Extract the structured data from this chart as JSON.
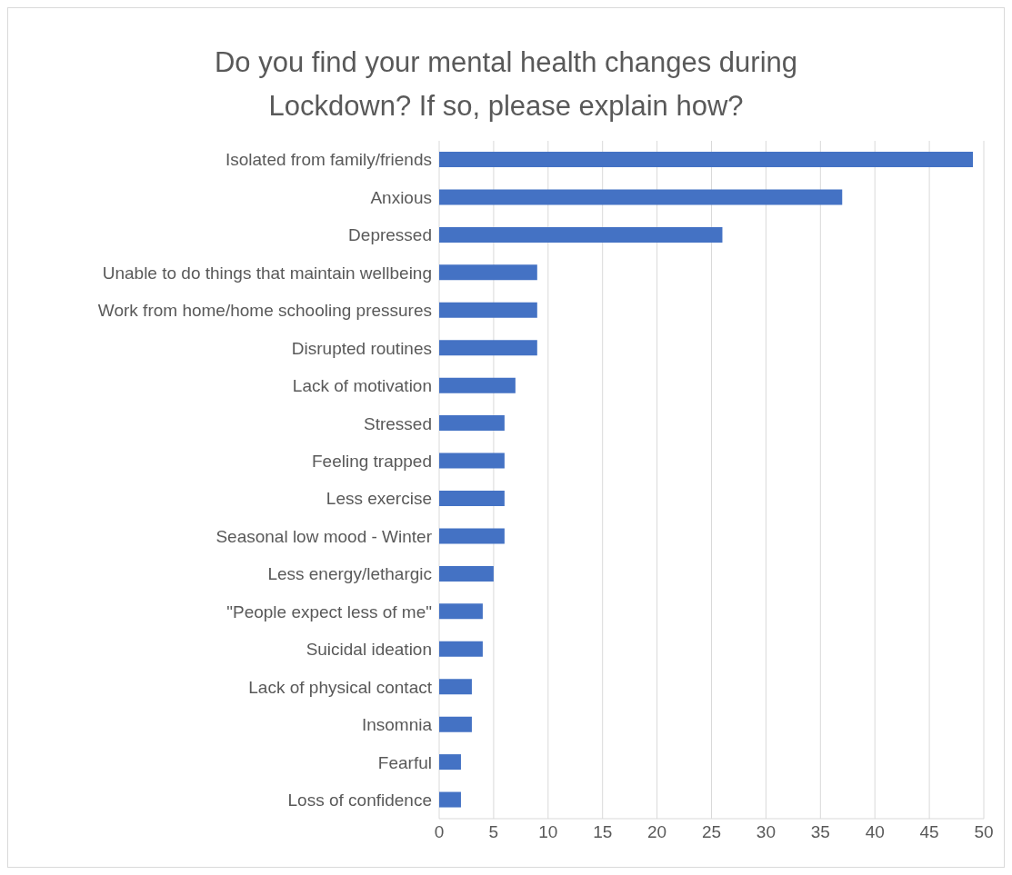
{
  "chart_data": {
    "type": "bar",
    "orientation": "horizontal",
    "title": "Do you find your mental health changes during Lockdown? If so, please explain how?",
    "categories": [
      "Isolated from family/friends",
      "Anxious",
      "Depressed",
      "Unable to do things that maintain wellbeing",
      "Work from home/home schooling pressures",
      "Disrupted routines",
      "Lack of motivation",
      "Stressed",
      "Feeling trapped",
      "Less exercise",
      "Seasonal low mood - Winter",
      "Less energy/lethargic",
      "\"People expect less of me\"",
      "Suicidal ideation",
      "Lack of physical contact",
      "Insomnia",
      "Fearful",
      "Loss of confidence"
    ],
    "values": [
      49,
      37,
      26,
      9,
      9,
      9,
      7,
      6,
      6,
      6,
      6,
      5,
      4,
      4,
      3,
      3,
      2,
      2
    ],
    "color": "#4472c4",
    "xlim": [
      0,
      50
    ],
    "xticks": [
      0,
      5,
      10,
      15,
      20,
      25,
      30,
      35,
      40,
      45,
      50
    ],
    "grid": "x",
    "legend": false
  }
}
